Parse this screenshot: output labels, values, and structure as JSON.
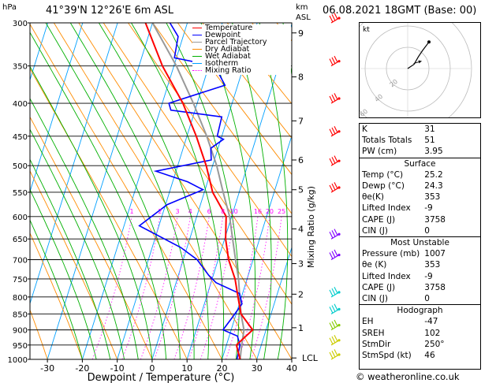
{
  "header": {
    "location": "41°39'N 12°26'E 6m ASL",
    "datetime": "06.08.2021 18GMT (Base: 00)",
    "hpa_unit": "hPa",
    "km_unit": "km",
    "asl_unit": "ASL"
  },
  "legend": [
    {
      "label": "Temperature",
      "color": "#ff0000",
      "dash": "solid"
    },
    {
      "label": "Dewpoint",
      "color": "#0000ff",
      "dash": "solid"
    },
    {
      "label": "Parcel Trajectory",
      "color": "#999999",
      "dash": "solid"
    },
    {
      "label": "Dry Adiabat",
      "color": "#ff8c00",
      "dash": "solid"
    },
    {
      "label": "Wet Adiabat",
      "color": "#00b000",
      "dash": "solid"
    },
    {
      "label": "Isotherm",
      "color": "#00a0ff",
      "dash": "solid"
    },
    {
      "label": "Mixing Ratio",
      "color": "#ff00ff",
      "dash": "dotted"
    }
  ],
  "chart_data": {
    "type": "line",
    "xlabel": "Dewpoint / Temperature (°C)",
    "ylabel": "",
    "x_ticks": [
      -30,
      -20,
      -10,
      0,
      10,
      20,
      30,
      40
    ],
    "xlim": [
      -35,
      40
    ],
    "pressure_levels": [
      300,
      350,
      400,
      450,
      500,
      550,
      600,
      650,
      700,
      750,
      800,
      850,
      900,
      950,
      1000
    ],
    "ylim": [
      1000,
      300
    ],
    "km_ticks": [
      {
        "label": "9",
        "p": 311
      },
      {
        "label": "8",
        "p": 364
      },
      {
        "label": "7",
        "p": 426
      },
      {
        "label": "6",
        "p": 490
      },
      {
        "label": "5",
        "p": 545
      },
      {
        "label": "4",
        "p": 627
      },
      {
        "label": "3",
        "p": 710
      },
      {
        "label": "2",
        "p": 792
      },
      {
        "label": "1",
        "p": 893
      },
      {
        "label": "LCL",
        "p": 995
      }
    ],
    "mixing_ratio_axis_label": "Mixing Ratio (g/kg)",
    "mixing_ratio_labels": [
      "1",
      "2",
      "3",
      "4",
      "6",
      "8",
      "10",
      "16",
      "20",
      "25"
    ],
    "mixing_ratio_values": [
      1,
      2,
      3,
      4,
      6,
      8,
      10,
      16,
      20,
      25
    ],
    "skew_deg_per_hpa": 0.043,
    "series": [
      {
        "name": "Temperature",
        "color": "#ff0000",
        "points": [
          [
            1000,
            25.2
          ],
          [
            950,
            22
          ],
          [
            900,
            24.5
          ],
          [
            850,
            19
          ],
          [
            800,
            16
          ],
          [
            750,
            13
          ],
          [
            700,
            9
          ],
          [
            650,
            6
          ],
          [
            600,
            4
          ],
          [
            550,
            -2
          ],
          [
            500,
            -6
          ],
          [
            450,
            -11
          ],
          [
            400,
            -17
          ],
          [
            350,
            -25
          ],
          [
            300,
            -32
          ]
        ]
      },
      {
        "name": "Dewpoint",
        "color": "#0000ff",
        "points": [
          [
            1000,
            24.3
          ],
          [
            950,
            23
          ],
          [
            920,
            21
          ],
          [
            900,
            16
          ],
          [
            860,
            17
          ],
          [
            820,
            18
          ],
          [
            790,
            16
          ],
          [
            760,
            8
          ],
          [
            740,
            5
          ],
          [
            700,
            0
          ],
          [
            670,
            -6
          ],
          [
            620,
            -20
          ],
          [
            575,
            -14
          ],
          [
            545,
            -5
          ],
          [
            530,
            -10
          ],
          [
            510,
            -20
          ],
          [
            490,
            -5
          ],
          [
            470,
            -6
          ],
          [
            455,
            -3
          ],
          [
            450,
            -5
          ],
          [
            420,
            -5
          ],
          [
            410,
            -20
          ],
          [
            400,
            -21
          ],
          [
            375,
            -6
          ],
          [
            350,
            -10
          ],
          [
            340,
            -22
          ],
          [
            315,
            -22
          ],
          [
            300,
            -25
          ]
        ]
      },
      {
        "name": "Parcel Trajectory",
        "color": "#999999",
        "points": [
          [
            1000,
            25.2
          ],
          [
            950,
            23.5
          ],
          [
            900,
            22
          ],
          [
            850,
            19
          ],
          [
            800,
            16.5
          ],
          [
            750,
            14
          ],
          [
            700,
            11
          ],
          [
            650,
            8
          ],
          [
            600,
            5
          ],
          [
            550,
            1
          ],
          [
            500,
            -3
          ],
          [
            450,
            -8
          ],
          [
            400,
            -14
          ],
          [
            350,
            -21
          ],
          [
            300,
            -30
          ]
        ]
      }
    ],
    "hodograph": {
      "label": "kt",
      "ring_labels": [
        "20",
        "40",
        "60"
      ],
      "points": [
        [
          0,
          0
        ],
        [
          6,
          4
        ],
        [
          10,
          11
        ],
        [
          14,
          17
        ],
        [
          20,
          25
        ]
      ],
      "storm_motion": [
        13,
        7
      ]
    },
    "wind_barbs": [
      {
        "p": 1000,
        "color": "#cccc00"
      },
      {
        "p": 950,
        "color": "#cccc00"
      },
      {
        "p": 900,
        "color": "#88cc00"
      },
      {
        "p": 850,
        "color": "#00cccc"
      },
      {
        "p": 800,
        "color": "#00cccc"
      },
      {
        "p": 700,
        "color": "#8000ff"
      },
      {
        "p": 650,
        "color": "#8000ff"
      },
      {
        "p": 550,
        "color": "#ff0000"
      },
      {
        "p": 500,
        "color": "#ff0000"
      },
      {
        "p": 450,
        "color": "#ff0000"
      },
      {
        "p": 400,
        "color": "#ff0000"
      },
      {
        "p": 350,
        "color": "#ff0000"
      },
      {
        "p": 300,
        "color": "#ff0000"
      }
    ]
  },
  "indices": [
    {
      "type": "row",
      "label": "K",
      "value": "31"
    },
    {
      "type": "row",
      "label": "Totals Totals",
      "value": "51"
    },
    {
      "type": "row",
      "label": "PW (cm)",
      "value": "3.95"
    },
    {
      "type": "section",
      "label": "Surface"
    },
    {
      "type": "row",
      "label": "Temp (°C)",
      "value": "25.2"
    },
    {
      "type": "row",
      "label": "Dewp (°C)",
      "value": "24.3"
    },
    {
      "type": "row",
      "label": "θe(K)",
      "value": "353"
    },
    {
      "type": "row",
      "label": "Lifted Index",
      "value": "-9"
    },
    {
      "type": "row",
      "label": "CAPE (J)",
      "value": "3758"
    },
    {
      "type": "row",
      "label": "CIN (J)",
      "value": "0"
    },
    {
      "type": "section",
      "label": "Most Unstable"
    },
    {
      "type": "row",
      "label": "Pressure (mb)",
      "value": "1007"
    },
    {
      "type": "row",
      "label": "θe (K)",
      "value": "353"
    },
    {
      "type": "row",
      "label": "Lifted Index",
      "value": "-9"
    },
    {
      "type": "row",
      "label": "CAPE (J)",
      "value": "3758"
    },
    {
      "type": "row",
      "label": "CIN (J)",
      "value": "0"
    },
    {
      "type": "section",
      "label": "Hodograph"
    },
    {
      "type": "row",
      "label": "EH",
      "value": "-47"
    },
    {
      "type": "row",
      "label": "SREH",
      "value": "102"
    },
    {
      "type": "row",
      "label": "StmDir",
      "value": "250°"
    },
    {
      "type": "row",
      "label": "StmSpd (kt)",
      "value": "46"
    }
  ],
  "footer": {
    "copyright": "© weatheronline.co.uk"
  }
}
